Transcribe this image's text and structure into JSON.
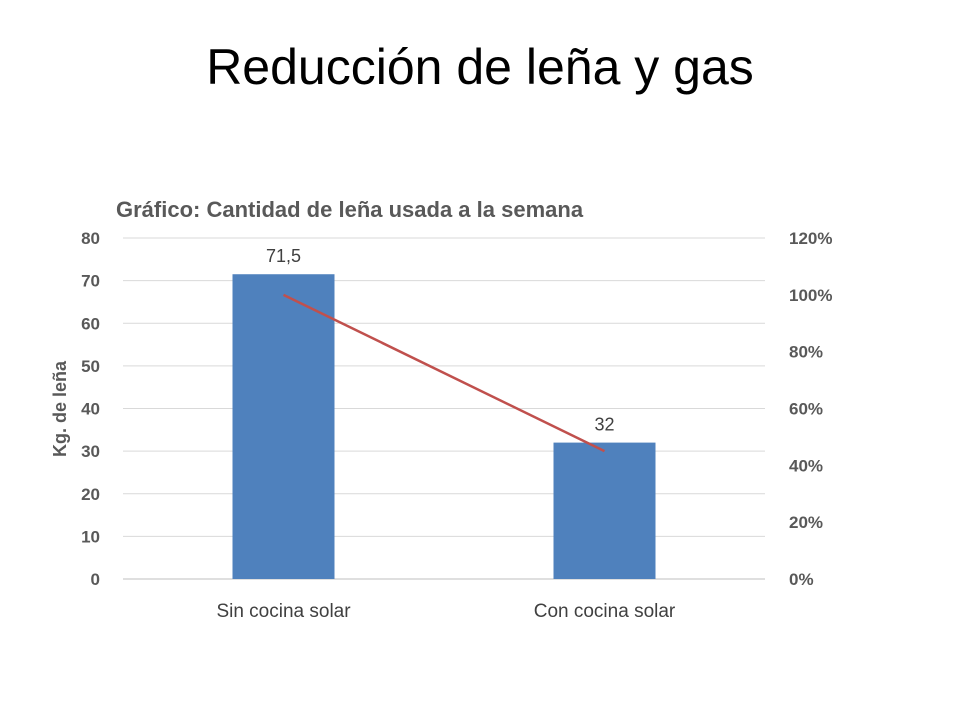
{
  "slide": {
    "title": "Reducción de leña y gas"
  },
  "chart_data": {
    "type": "bar",
    "title": "Gráfico: Cantidad de leña usada a la semana",
    "ylabel": "Kg. de leña",
    "xlabel": "",
    "categories": [
      "Sin cocina solar",
      "Con cocina solar"
    ],
    "series": [
      {
        "type": "bar",
        "axis": "left",
        "values": [
          71.5,
          32
        ],
        "color": "#4f81bd",
        "data_labels": [
          "71,5",
          "32"
        ]
      },
      {
        "type": "line",
        "axis": "right",
        "values": [
          1.0,
          0.45
        ],
        "color": "#c0504d"
      }
    ],
    "ylim": [
      0,
      80
    ],
    "yticks": [
      "0",
      "10",
      "20",
      "30",
      "40",
      "50",
      "60",
      "70",
      "80"
    ],
    "y2lim": [
      0,
      1.2
    ],
    "y2ticks": [
      "0%",
      "20%",
      "40%",
      "60%",
      "80%",
      "100%",
      "120%"
    ],
    "grid": true,
    "legend": "none"
  }
}
